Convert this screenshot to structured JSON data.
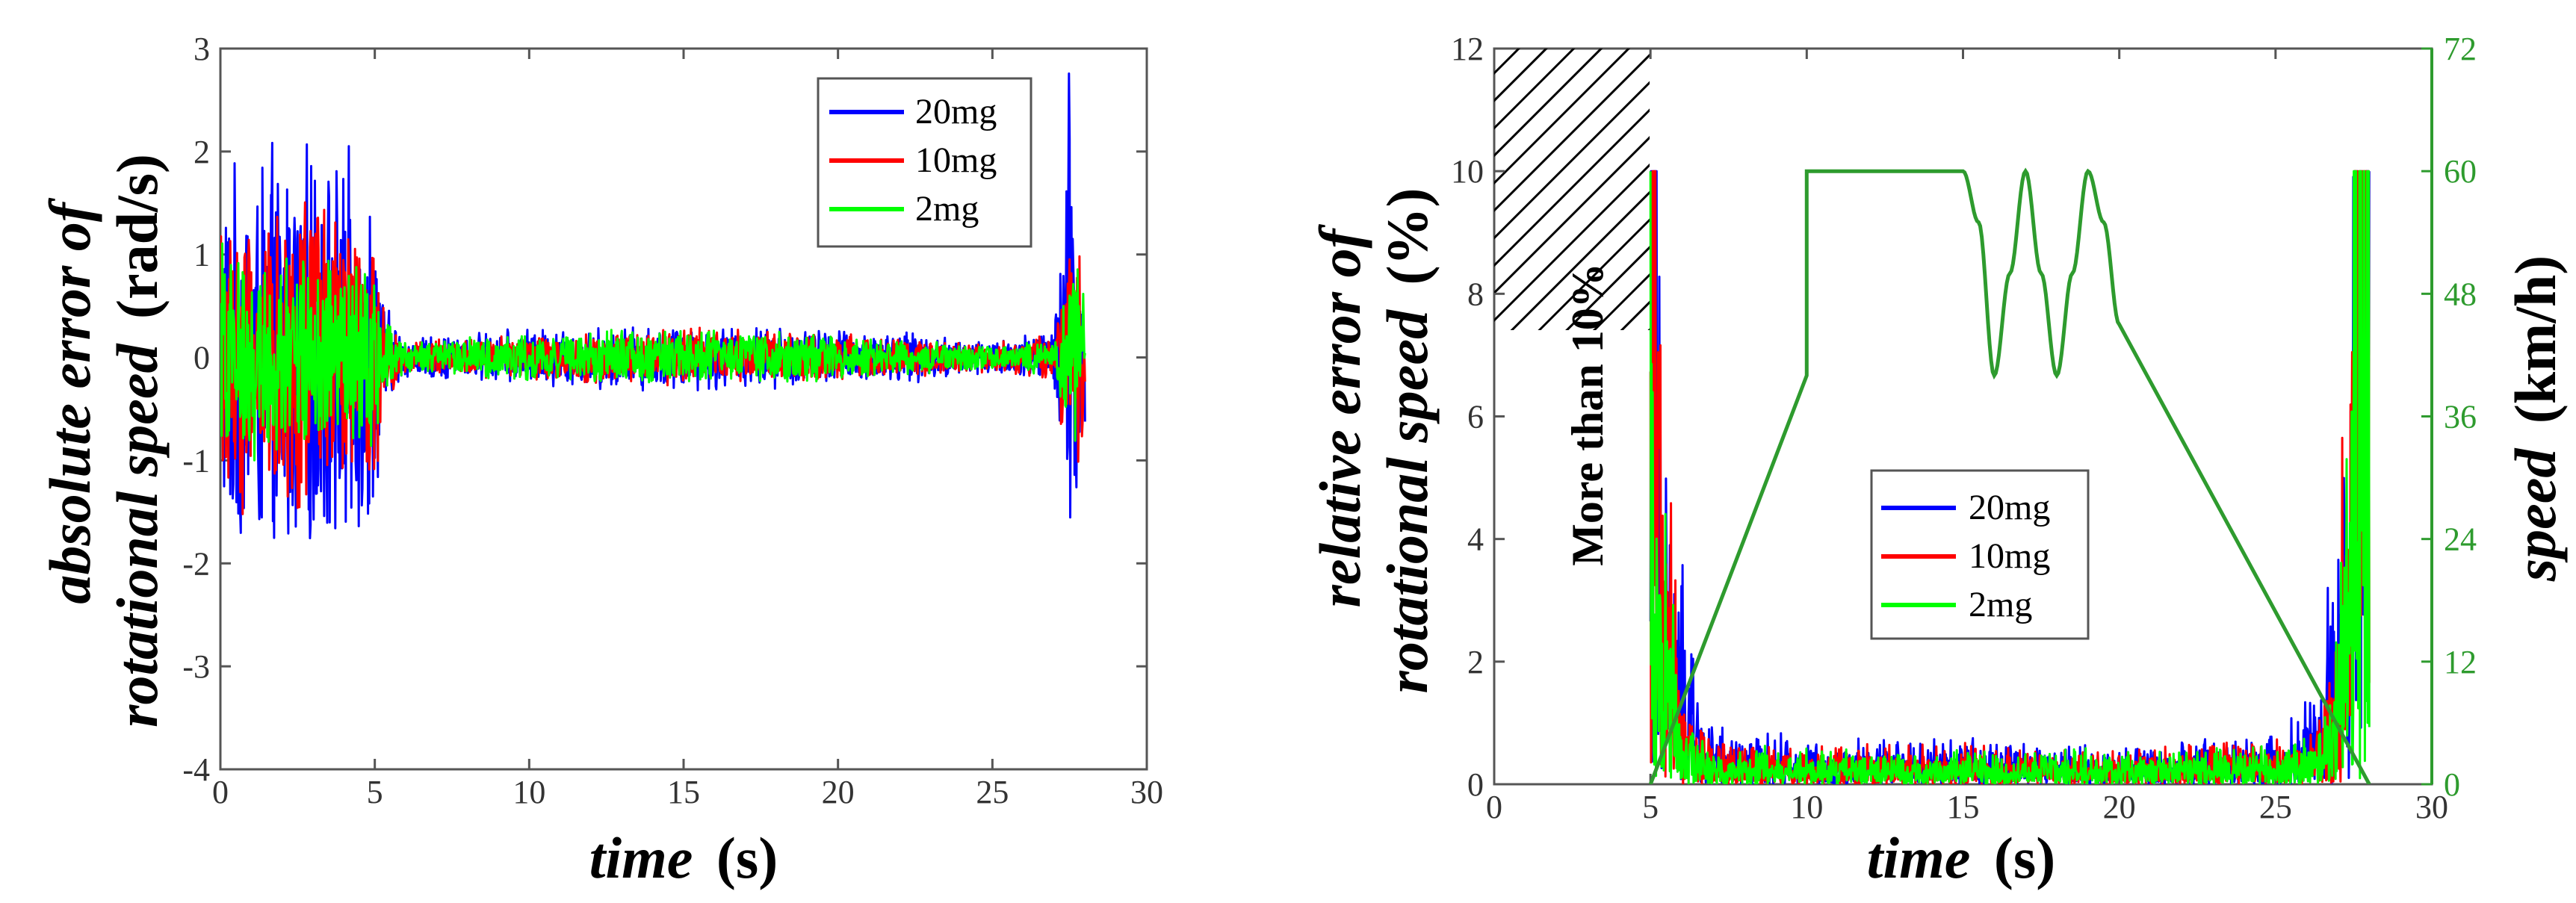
{
  "chart_data": [
    {
      "type": "line",
      "xlabel_italic": "time",
      "xlabel_unit": "(s)",
      "ylabel_line1_italic": "absolute error  of",
      "ylabel_line2_italic": "rotational speed",
      "ylabel_unit": "(rad/s)",
      "xlim": [
        0,
        30
      ],
      "ylim": [
        -4,
        3
      ],
      "xticks": [
        0,
        5,
        10,
        15,
        20,
        25,
        30
      ],
      "yticks": [
        -4,
        -3,
        -2,
        -1,
        0,
        1,
        2,
        3
      ],
      "legend": "top-right",
      "series": [
        {
          "name": "20mg",
          "color": "#0000ff",
          "envelope": {
            "x": [
              0,
              2,
              4,
              5,
              5.3,
              6,
              10,
              15,
              20,
              25,
              27,
              27.5,
              27.8,
              28
            ],
            "amp": [
              1.9,
              2.2,
              2.1,
              1.8,
              0.6,
              0.2,
              0.3,
              0.35,
              0.3,
              0.2,
              0.3,
              3.1,
              1.5,
              1.0
            ]
          }
        },
        {
          "name": "10mg",
          "color": "#ff0000",
          "envelope": {
            "x": [
              0,
              2,
              4,
              5,
              5.3,
              6,
              10,
              15,
              20,
              25,
              27,
              27.5,
              27.8,
              28
            ],
            "amp": [
              1.6,
              1.7,
              1.5,
              1.6,
              0.5,
              0.15,
              0.25,
              0.3,
              0.25,
              0.15,
              0.25,
              1.4,
              1.3,
              0.9
            ]
          }
        },
        {
          "name": "2mg",
          "color": "#00ff00",
          "envelope": {
            "x": [
              0,
              2,
              4,
              5,
              5.3,
              6,
              10,
              15,
              20,
              25,
              27,
              27.5,
              27.8,
              28
            ],
            "amp": [
              1.2,
              1.1,
              1.05,
              1.0,
              0.4,
              0.15,
              0.25,
              0.3,
              0.25,
              0.12,
              0.2,
              0.9,
              0.95,
              0.6
            ]
          }
        }
      ]
    },
    {
      "type": "line",
      "xlabel_italic": "time",
      "xlabel_unit": "(s)",
      "ylabel_line1_italic": "relative error of",
      "ylabel_line2_italic": "rotational speed",
      "ylabel_unit": "(%)",
      "y2label_italic": "speed",
      "y2label_unit": "(km/h)",
      "xlim": [
        0,
        30
      ],
      "ylim": [
        0,
        12
      ],
      "y2lim": [
        0,
        72
      ],
      "xticks": [
        0,
        5,
        10,
        15,
        20,
        25,
        30
      ],
      "yticks": [
        0,
        2,
        4,
        6,
        8,
        10,
        12
      ],
      "y2ticks": [
        0,
        12,
        24,
        36,
        48,
        60,
        72
      ],
      "legend": "center",
      "annotation": "More than 10%",
      "speed_profile": {
        "name": "speed",
        "color": "#2e9b2e",
        "x": [
          5,
          10,
          10,
          15,
          15.5,
          16,
          16.5,
          17,
          17.5,
          18,
          18.5,
          19,
          19.5,
          20,
          28
        ],
        "y": [
          0,
          40,
          60,
          60,
          55,
          40,
          50,
          60,
          50,
          40,
          50,
          60,
          55,
          45,
          0
        ]
      },
      "series": [
        {
          "name": "20mg",
          "color": "#0000ff",
          "envelope": {
            "x": [
              5,
              5.2,
              5.5,
              6,
              6.5,
              7,
              10,
              15,
              20,
              25,
              26.5,
              27,
              27.5,
              28
            ],
            "amp": [
              10,
              10,
              7,
              4,
              1.8,
              1.0,
              0.8,
              0.8,
              0.7,
              0.9,
              2.0,
              6.5,
              10,
              10
            ]
          }
        },
        {
          "name": "10mg",
          "color": "#ff0000",
          "envelope": {
            "x": [
              5,
              5.2,
              5.5,
              6,
              6.5,
              7,
              10,
              15,
              20,
              25,
              26.5,
              27,
              27.5,
              28
            ],
            "amp": [
              10,
              10,
              6,
              2.5,
              1.2,
              0.8,
              0.7,
              0.7,
              0.6,
              0.8,
              1.2,
              4.5,
              10,
              10
            ]
          }
        },
        {
          "name": "2mg",
          "color": "#00ff00",
          "envelope": {
            "x": [
              5,
              5.2,
              5.5,
              6,
              6.5,
              7,
              10,
              15,
              20,
              25,
              26.5,
              27,
              27.5,
              28
            ],
            "amp": [
              10,
              9,
              5,
              2.0,
              0.9,
              0.7,
              0.6,
              0.6,
              0.6,
              0.7,
              1.0,
              3.5,
              10,
              10
            ]
          }
        }
      ]
    }
  ]
}
